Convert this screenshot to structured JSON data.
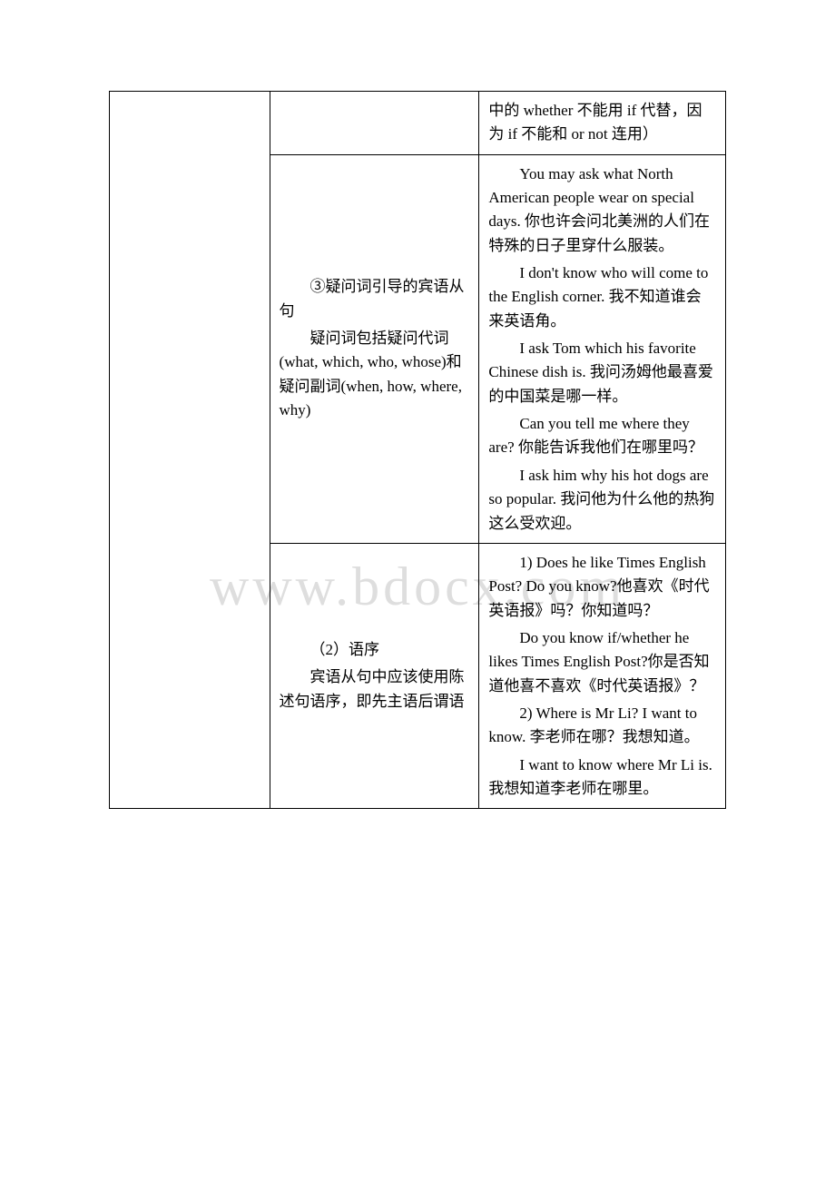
{
  "watermark": "www.bdocx.com",
  "rows": [
    {
      "c1": "",
      "c2": "",
      "c3": [
        "中的 whether 不能用 if 代替，因为 if 不能和 or not 连用）"
      ]
    },
    {
      "c2": [
        "③疑问词引导的宾语从句",
        "疑问词包括疑问代词(what, which, who, whose)和疑问副词(when, how, where, why)"
      ],
      "c3": [
        "You may ask what North American people wear on special days. 你也许会问北美洲的人们在特殊的日子里穿什么服装。",
        "I don't know who will come to the English corner. 我不知道谁会来英语角。",
        "I ask Tom which his favorite Chinese dish is. 我问汤姆他最喜爱的中国菜是哪一样。",
        "Can you tell me where they are? 你能告诉我他们在哪里吗？",
        "I ask him why his hot dogs are so popular. 我问他为什么他的热狗这么受欢迎。"
      ]
    },
    {
      "c2": [
        "（2）语序",
        "宾语从句中应该使用陈述句语序，即先主语后谓语"
      ],
      "c3": [
        "1) Does he like Times English Post? Do you know?他喜欢《时代英语报》吗？你知道吗？",
        "Do you know if/whether he likes Times English Post?你是否知道他喜不喜欢《时代英语报》？",
        "2) Where is Mr Li? I want to know. 李老师在哪？我想知道。",
        "I want to know where Mr Li is. 我想知道李老师在哪里。"
      ]
    }
  ]
}
